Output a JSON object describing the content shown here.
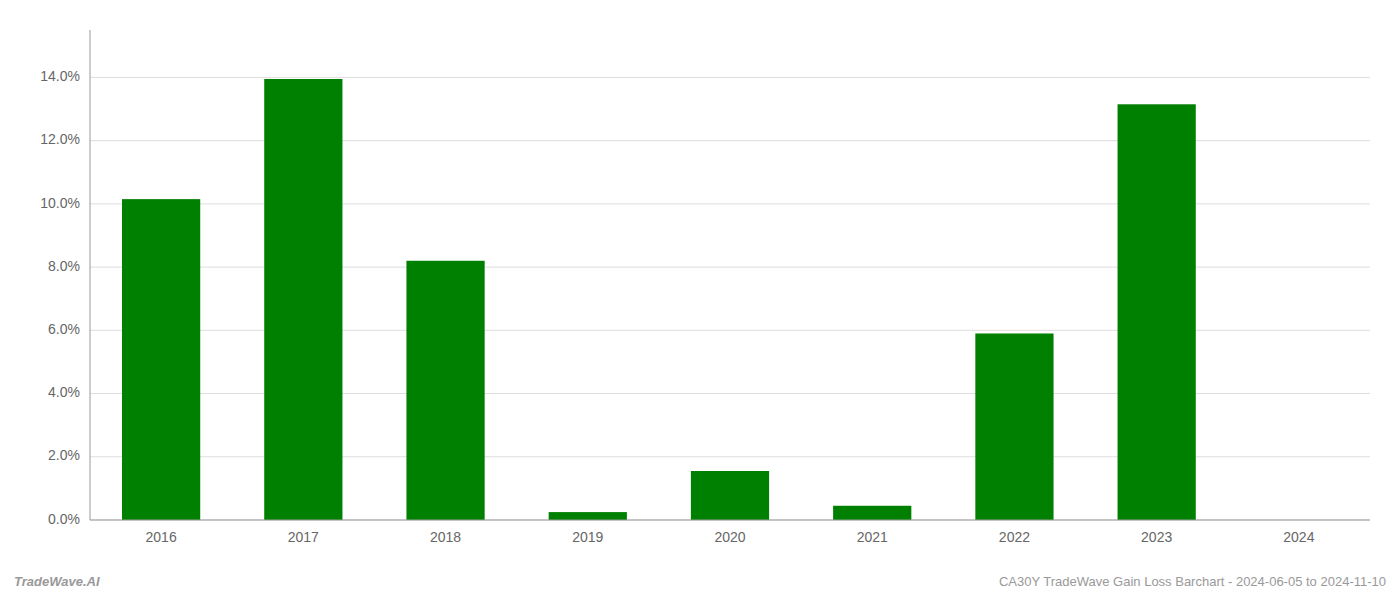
{
  "chart_data": {
    "type": "bar",
    "categories": [
      "2016",
      "2017",
      "2018",
      "2019",
      "2020",
      "2021",
      "2022",
      "2023",
      "2024"
    ],
    "values": [
      0.1015,
      0.1395,
      0.082,
      0.0025,
      0.0155,
      0.0045,
      0.059,
      0.1315,
      0.0
    ],
    "color": "#008000",
    "ylim": [
      0,
      0.155
    ],
    "yticks": [
      {
        "value": 0.0,
        "label": "0.0%"
      },
      {
        "value": 0.02,
        "label": "2.0%"
      },
      {
        "value": 0.04,
        "label": "4.0%"
      },
      {
        "value": 0.06,
        "label": "6.0%"
      },
      {
        "value": 0.08,
        "label": "8.0%"
      },
      {
        "value": 0.1,
        "label": "10.0%"
      },
      {
        "value": 0.12,
        "label": "12.0%"
      },
      {
        "value": 0.14,
        "label": "14.0%"
      }
    ],
    "grid": true,
    "annotations": [
      "TradeWave.AI",
      "CA30Y TradeWave Gain Loss Barchart - 2024-06-05 to 2024-11-10"
    ]
  }
}
